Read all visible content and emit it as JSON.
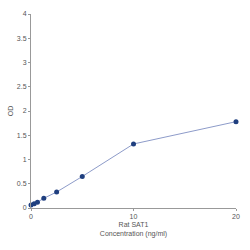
{
  "chart_data": {
    "type": "line",
    "marker": "circle",
    "x_label": [
      "Rat SAT1",
      "Concentration (ng/ml)"
    ],
    "y_label": "OD",
    "x": [
      0,
      0.31,
      0.63,
      1.25,
      2.5,
      5,
      10,
      20
    ],
    "values": [
      0.06,
      0.09,
      0.12,
      0.2,
      0.33,
      0.65,
      1.32,
      1.78
    ],
    "color": "#1f3f7f",
    "xlim": [
      0,
      20
    ],
    "xticks": [
      0,
      10,
      20
    ],
    "ylim": [
      0,
      4
    ],
    "yticks": [
      0,
      0.5,
      1,
      1.5,
      2,
      2.5,
      3,
      3.5,
      4
    ],
    "grid": false
  }
}
